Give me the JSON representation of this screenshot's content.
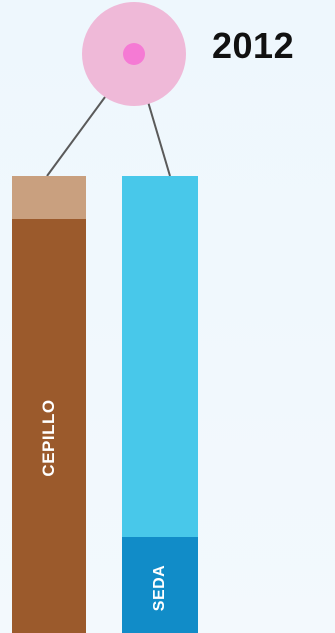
{
  "year": "2012",
  "marker": {
    "outer_color": "#efb9d8",
    "inner_color": "#f57ad4",
    "connector_color": "#5a5a5a"
  },
  "bars": [
    {
      "label": "CEPILLO",
      "top_color": "#c9a07f",
      "main_color": "#9b5a2c",
      "top_fraction": 0.095
    },
    {
      "label": "SEDA",
      "top_color": "#48c8ea",
      "main_color": "#118cc8",
      "top_fraction": 0.79
    }
  ]
}
